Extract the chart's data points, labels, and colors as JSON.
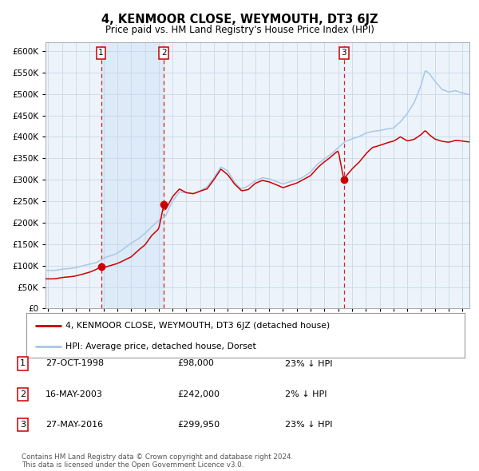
{
  "title": "4, KENMOOR CLOSE, WEYMOUTH, DT3 6JZ",
  "subtitle": "Price paid vs. HM Land Registry's House Price Index (HPI)",
  "ylim": [
    0,
    620000
  ],
  "yticks": [
    0,
    50000,
    100000,
    150000,
    200000,
    250000,
    300000,
    350000,
    400000,
    450000,
    500000,
    550000,
    600000
  ],
  "xlim_start": 1994.8,
  "xlim_end": 2025.5,
  "sale_dates": [
    1998.82,
    2003.37,
    2016.41
  ],
  "sale_prices": [
    98000,
    242000,
    299950
  ],
  "sale_labels": [
    "1",
    "2",
    "3"
  ],
  "dashed_line_color": "#cc0000",
  "sale_dot_color": "#cc0000",
  "hpi_line_color": "#a8c8e8",
  "price_line_color": "#cc0000",
  "shaded_regions": [
    [
      1998.82,
      2003.37
    ]
  ],
  "shaded_color": "#ddeaf7",
  "legend_property_label": "4, KENMOOR CLOSE, WEYMOUTH, DT3 6JZ (detached house)",
  "legend_hpi_label": "HPI: Average price, detached house, Dorset",
  "table_rows": [
    {
      "num": "1",
      "date": "27-OCT-1998",
      "price": "£98,000",
      "hpi": "23% ↓ HPI"
    },
    {
      "num": "2",
      "date": "16-MAY-2003",
      "price": "£242,000",
      "hpi": "2% ↓ HPI"
    },
    {
      "num": "3",
      "date": "27-MAY-2016",
      "price": "£299,950",
      "hpi": "23% ↓ HPI"
    }
  ],
  "footnote": "Contains HM Land Registry data © Crown copyright and database right 2024.\nThis data is licensed under the Open Government Licence v3.0.",
  "background_color": "#ffffff",
  "grid_color": "#c8d8e8",
  "axis_bg_color": "#edf3fa",
  "hpi_anchors": {
    "1995.0": 88000,
    "1995.5": 89000,
    "1996.0": 91000,
    "1996.5": 93000,
    "1997.0": 96000,
    "1997.5": 100000,
    "1998.0": 103000,
    "1998.5": 107000,
    "1999.0": 115000,
    "1999.5": 122000,
    "2000.0": 130000,
    "2000.5": 140000,
    "2001.0": 152000,
    "2001.5": 162000,
    "2002.0": 175000,
    "2002.5": 192000,
    "2003.0": 205000,
    "2003.5": 215000,
    "2004.0": 250000,
    "2004.5": 272000,
    "2005.0": 270000,
    "2005.5": 268000,
    "2006.0": 275000,
    "2006.5": 283000,
    "2007.0": 305000,
    "2007.5": 330000,
    "2008.0": 320000,
    "2008.5": 295000,
    "2009.0": 278000,
    "2009.5": 285000,
    "2010.0": 298000,
    "2010.5": 305000,
    "2011.0": 302000,
    "2011.5": 295000,
    "2012.0": 290000,
    "2012.5": 295000,
    "2013.0": 300000,
    "2013.5": 308000,
    "2014.0": 318000,
    "2014.5": 335000,
    "2015.0": 348000,
    "2015.5": 360000,
    "2016.0": 375000,
    "2016.5": 388000,
    "2017.0": 395000,
    "2017.5": 400000,
    "2018.0": 408000,
    "2018.5": 412000,
    "2019.0": 415000,
    "2019.5": 418000,
    "2020.0": 420000,
    "2020.5": 435000,
    "2021.0": 455000,
    "2021.5": 480000,
    "2022.0": 520000,
    "2022.3": 555000,
    "2022.6": 548000,
    "2023.0": 530000,
    "2023.5": 510000,
    "2024.0": 505000,
    "2024.5": 508000,
    "2025.0": 502000,
    "2025.4": 498000
  },
  "prop_anchors": {
    "1995.0": 68000,
    "1995.5": 70000,
    "1996.0": 72000,
    "1996.5": 74000,
    "1997.0": 76000,
    "1997.5": 80000,
    "1998.0": 85000,
    "1998.82": 98000,
    "1999.0": 95000,
    "1999.5": 100000,
    "2000.0": 105000,
    "2000.5": 112000,
    "2001.0": 120000,
    "2001.5": 135000,
    "2002.0": 148000,
    "2002.5": 170000,
    "2003.0": 185000,
    "2003.37": 242000,
    "2003.5": 230000,
    "2004.0": 260000,
    "2004.5": 278000,
    "2005.0": 270000,
    "2005.5": 268000,
    "2006.0": 272000,
    "2006.5": 278000,
    "2007.0": 300000,
    "2007.5": 325000,
    "2008.0": 312000,
    "2008.5": 290000,
    "2009.0": 275000,
    "2009.5": 278000,
    "2010.0": 292000,
    "2010.5": 298000,
    "2011.0": 295000,
    "2011.5": 288000,
    "2012.0": 282000,
    "2012.5": 288000,
    "2013.0": 292000,
    "2013.5": 300000,
    "2014.0": 310000,
    "2014.5": 328000,
    "2015.0": 342000,
    "2015.5": 355000,
    "2016.0": 368000,
    "2016.41": 299950,
    "2016.6": 310000,
    "2017.0": 325000,
    "2017.5": 340000,
    "2018.0": 360000,
    "2018.5": 375000,
    "2019.0": 380000,
    "2019.5": 385000,
    "2020.0": 390000,
    "2020.5": 400000,
    "2021.0": 390000,
    "2021.5": 395000,
    "2022.0": 405000,
    "2022.3": 415000,
    "2022.6": 405000,
    "2023.0": 395000,
    "2023.5": 390000,
    "2024.0": 388000,
    "2024.5": 392000,
    "2025.0": 390000,
    "2025.4": 388000
  }
}
